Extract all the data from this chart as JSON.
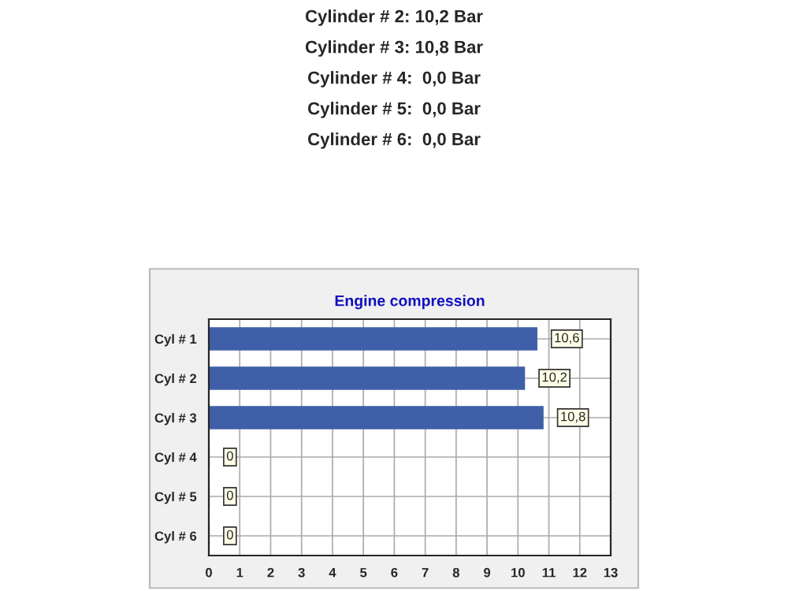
{
  "chart_data": {
    "type": "bar",
    "orientation": "horizontal",
    "title": "Engine compression",
    "categories": [
      "Cyl # 1",
      "Cyl # 2",
      "Cyl # 3",
      "Cyl # 4",
      "Cyl # 5",
      "Cyl # 6"
    ],
    "values": [
      10.6,
      10.2,
      10.8,
      0,
      0,
      0
    ],
    "color": "#3f5fa8",
    "value_labels": [
      "10,6",
      "10,2",
      "10,8",
      "0",
      "0",
      "0"
    ],
    "xlim": [
      0,
      13
    ],
    "xticks": [
      0,
      1,
      2,
      3,
      4,
      5,
      6,
      7,
      8,
      9,
      10,
      11,
      12,
      13
    ],
    "grid": true,
    "annotations": [
      "Cylinder # 2: 10,2 Bar",
      "Cylinder # 3: 10,8 Bar",
      "Cylinder # 4:  0,0 Bar",
      "Cylinder # 5:  0,0 Bar",
      "Cylinder # 6:  0,0 Bar"
    ]
  }
}
